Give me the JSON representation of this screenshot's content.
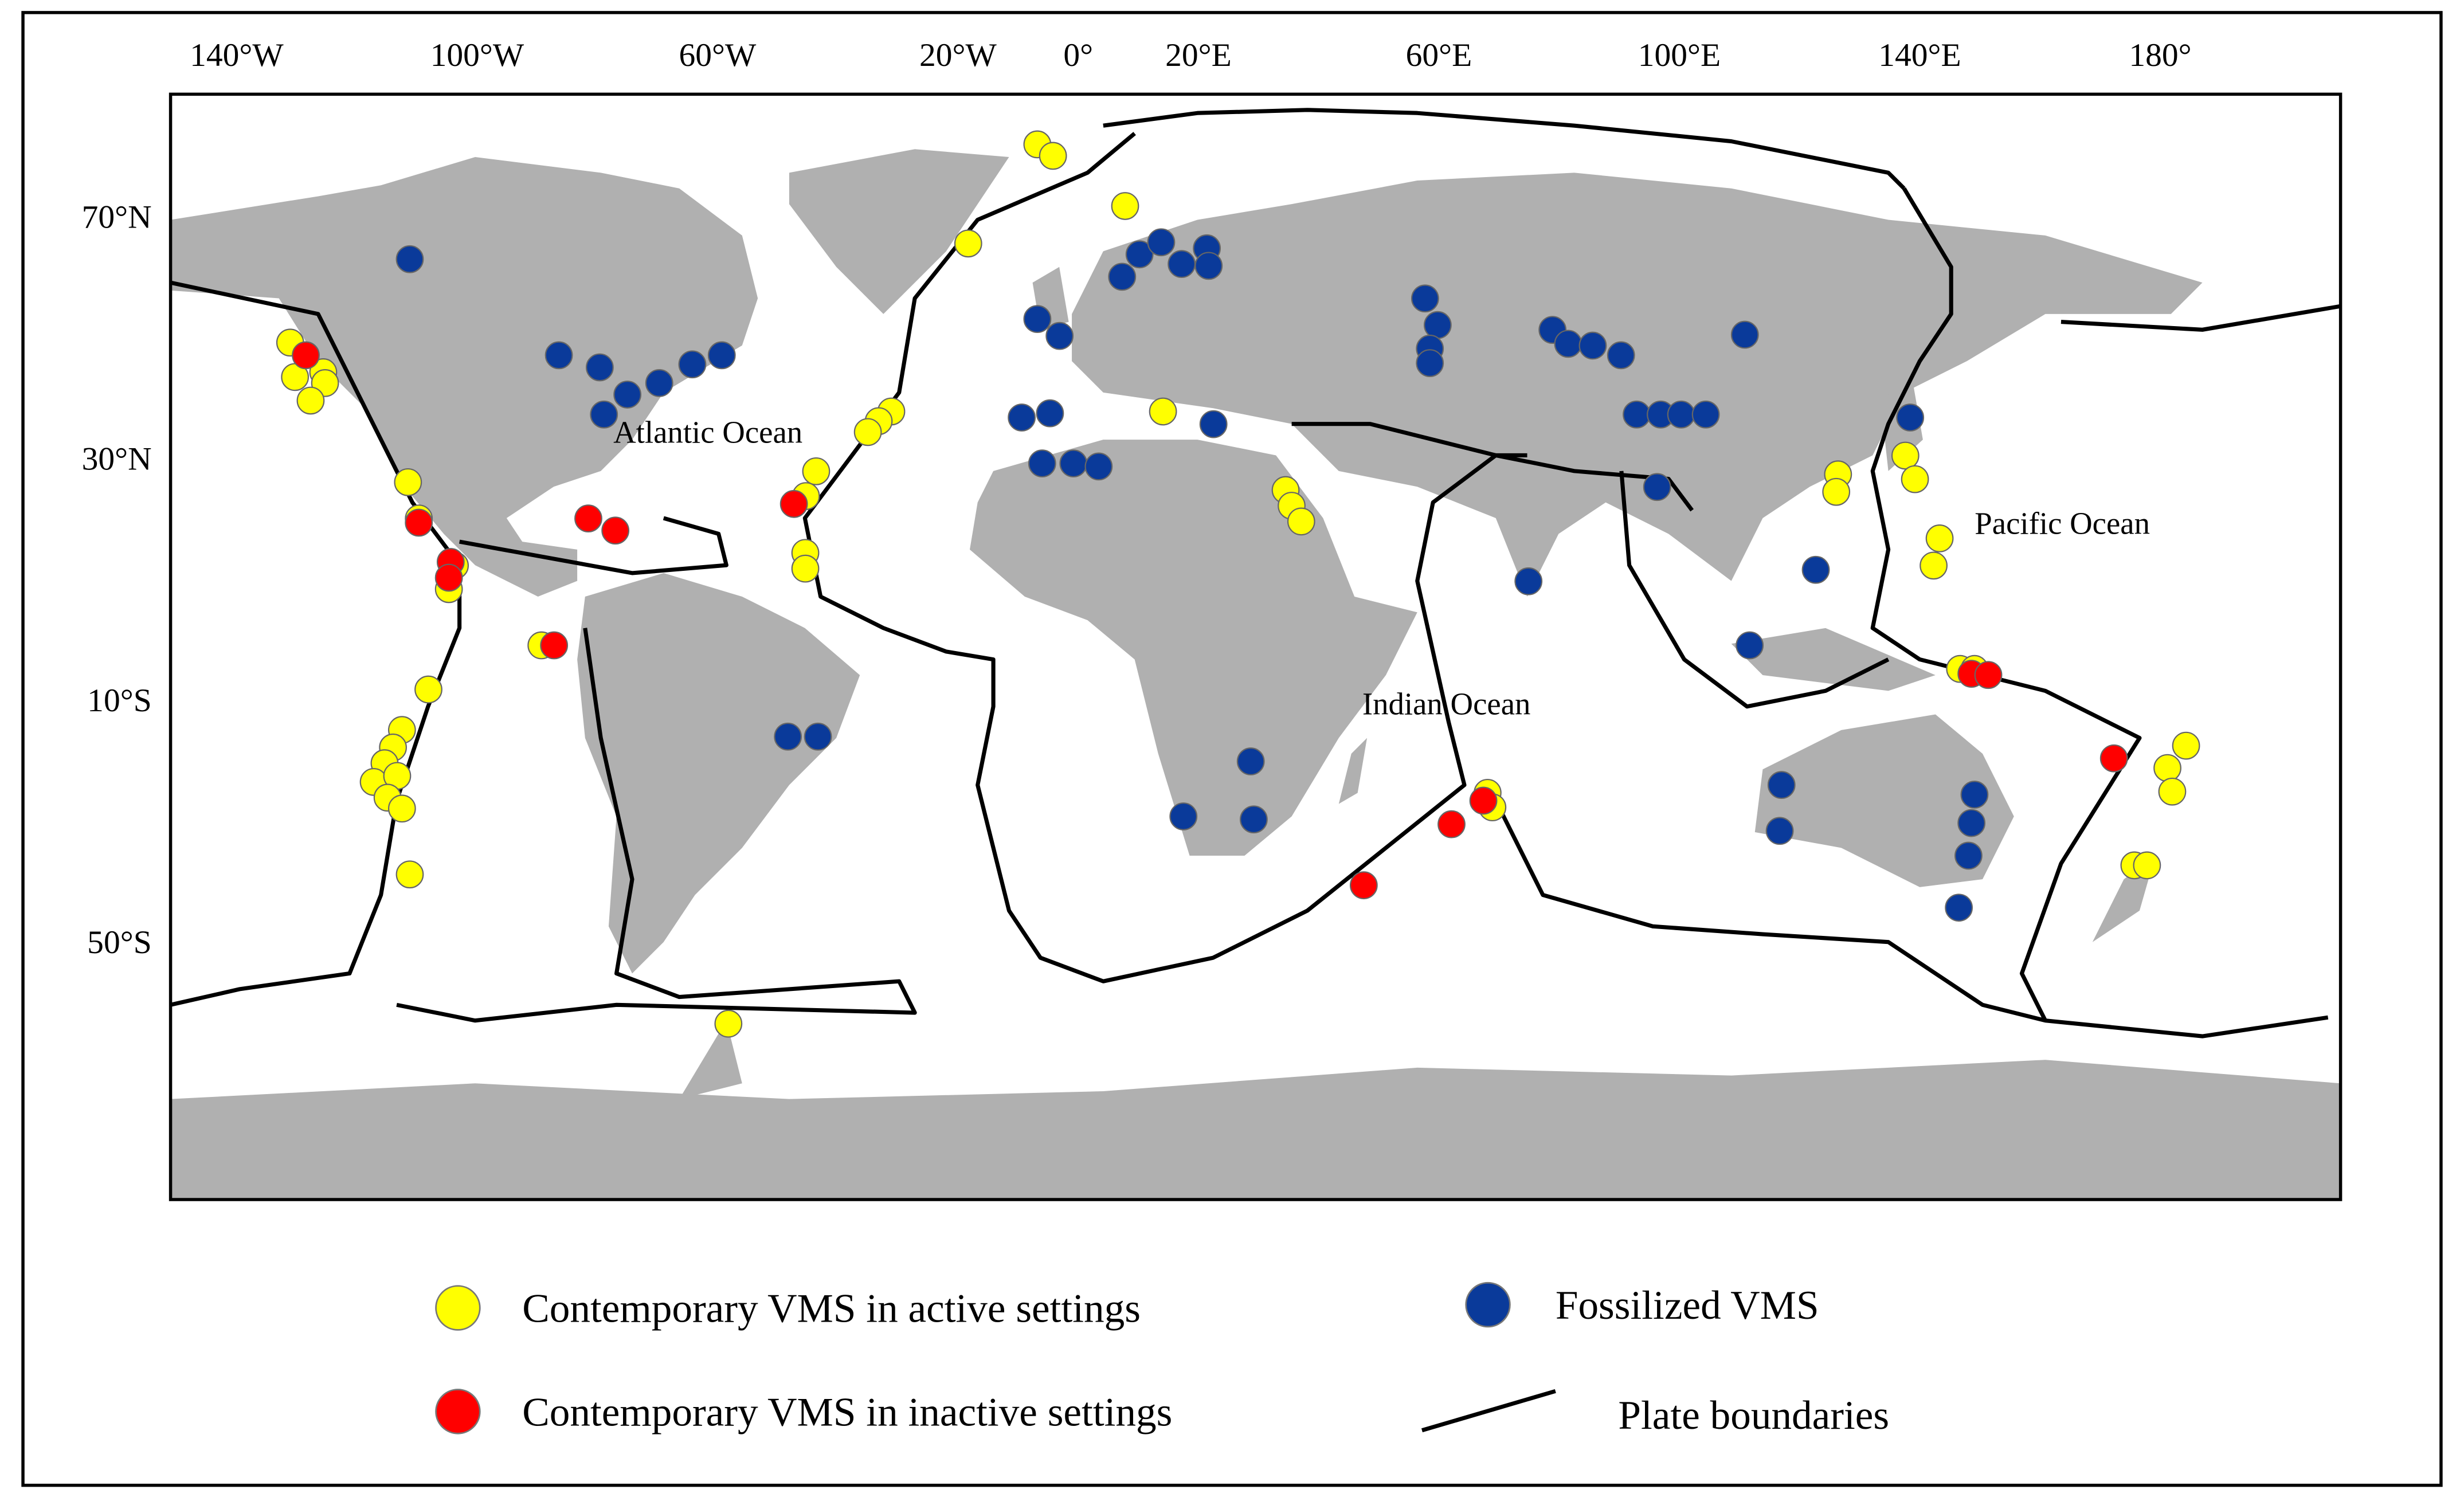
{
  "chart_data": {
    "type": "map",
    "xlim": [
      -151,
      210
    ],
    "ylim": [
      -92.6,
      90.3
    ],
    "xticks": [
      {
        "value": -140,
        "label": "140°W"
      },
      {
        "value": -100,
        "label": "100°W"
      },
      {
        "value": -60,
        "label": "60°W"
      },
      {
        "value": -20,
        "label": "20°W"
      },
      {
        "value": 0,
        "label": "0°"
      },
      {
        "value": 20,
        "label": "20°E"
      },
      {
        "value": 60,
        "label": "60°E"
      },
      {
        "value": 100,
        "label": "100°E"
      },
      {
        "value": 140,
        "label": "140°E"
      },
      {
        "value": 180,
        "label": "180°"
      }
    ],
    "yticks": [
      {
        "value": 70,
        "label": "70°N"
      },
      {
        "value": 30,
        "label": "30°N"
      },
      {
        "value": -10,
        "label": "10°S"
      },
      {
        "value": -50,
        "label": "50°S"
      }
    ],
    "annotations": [
      "Atlantic Ocean",
      "Pacific Ocean",
      "Indian Ocean"
    ],
    "boundary_label": "Plate boundaries",
    "series": [
      {
        "name": "Contemporary VMS in active settings",
        "color": "#ffff00",
        "lon": [
          -131.1,
          -130.3,
          -125.6,
          -125.3,
          -127.7,
          -111.5,
          -109.7,
          -103.7,
          -104.7,
          -89.3,
          -108.1,
          -112.5,
          -114.0,
          -115.4,
          -117.2,
          -113.3,
          -114.9,
          -112.5,
          -111.2,
          -6.8,
          -4.2,
          7.8,
          -18.3,
          -31.1,
          -33.2,
          -35.0,
          14.1,
          -43.6,
          -45.3,
          -45.4,
          -45.4,
          34.5,
          35.5,
          37.1,
          126.4,
          126.1,
          137.6,
          139.2,
          143.3,
          142.3,
          146.7,
          149.1,
          68.1,
          68.9,
          184.3,
          181.2,
          182.0,
          175.7,
          177.8,
          -58.2
        ],
        "lat": [
          49.2,
          43.5,
          44.3,
          42.5,
          39.6,
          26.1,
          20.1,
          12.3,
          8.4,
          -0.9,
          -8.2,
          -14.9,
          -17.8,
          -20.4,
          -23.5,
          -22.5,
          -26.1,
          -27.9,
          -38.8,
          82.0,
          80.1,
          71.8,
          65.6,
          37.8,
          36.2,
          34.4,
          37.8,
          27.9,
          23.8,
          14.4,
          11.8,
          24.8,
          22.2,
          19.6,
          27.4,
          24.5,
          30.5,
          26.6,
          16.8,
          12.3,
          -4.8,
          -4.8,
          -25.3,
          -27.7,
          -17.5,
          -21.2,
          -25.1,
          -37.3,
          -37.3,
          -63.5
        ]
      },
      {
        "name": "Contemporary VMS in inactive settings",
        "color": "#ff0000",
        "lon": [
          -128.5,
          -109.7,
          -104.4,
          -104.7,
          -87.2,
          -81.5,
          -77.0,
          -47.3,
          67.4,
          62.1,
          47.5,
          148.6,
          151.4,
          172.3
        ],
        "lat": [
          47.1,
          19.4,
          12.9,
          10.3,
          -0.9,
          20.1,
          18.1,
          22.5,
          -26.6,
          -30.5,
          -40.6,
          -5.6,
          -5.8,
          -19.6
        ]
      },
      {
        "name": "Fossilized VMS",
        "color": "#0a3a9a",
        "lon": [
          -111.2,
          -86.4,
          -79.6,
          -78.9,
          -75.0,
          -69.7,
          -64.2,
          -59.3,
          -48.3,
          -43.3,
          -6.8,
          -3.1,
          7.3,
          10.2,
          13.8,
          17.2,
          21.4,
          21.7,
          -9.4,
          -4.7,
          22.5,
          -6.0,
          -0.8,
          3.4,
          57.7,
          59.8,
          58.5,
          58.5,
          78.9,
          81.5,
          85.6,
          90.3,
          110.9,
          92.9,
          96.9,
          100.3,
          104.4,
          96.3,
          138.4,
          74.9,
          122.7,
          111.7,
          28.7,
          17.5,
          29.2,
          117.0,
          116.7,
          149.1,
          148.6,
          148.1,
          146.5
        ],
        "lat": [
          63.0,
          47.1,
          45.1,
          37.3,
          40.6,
          42.5,
          45.6,
          47.1,
          -16.0,
          -16.0,
          53.1,
          50.3,
          60.1,
          63.8,
          65.8,
          62.2,
          64.8,
          61.9,
          36.8,
          37.5,
          35.7,
          29.2,
          29.2,
          28.7,
          56.5,
          52.1,
          48.2,
          45.8,
          51.3,
          49.0,
          48.7,
          47.1,
          50.5,
          37.3,
          37.3,
          37.3,
          37.3,
          25.3,
          36.8,
          9.7,
          11.6,
          -0.9,
          -20.1,
          -29.2,
          -29.7,
          -24.0,
          -31.6,
          -25.6,
          -30.3,
          -35.7,
          -44.3
        ]
      }
    ]
  }
}
